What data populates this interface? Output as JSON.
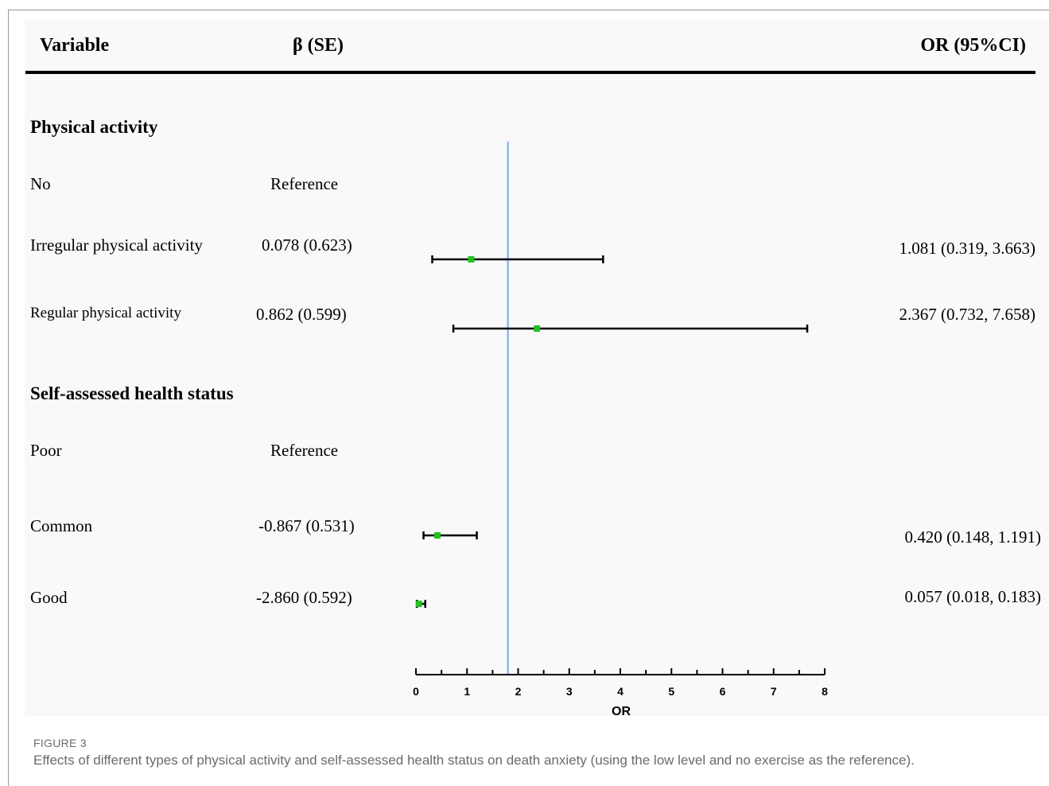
{
  "header": {
    "variable": "Variable",
    "beta": "β (SE)",
    "or": "OR (95%CI)"
  },
  "sections": [
    {
      "title": "Physical activity",
      "rows": [
        {
          "label": "No",
          "beta": "Reference",
          "or_text": ""
        },
        {
          "label": "Irregular physical activity",
          "beta": "0.078 (0.623)",
          "or_text": "1.081 (0.319, 3.663)"
        },
        {
          "label": "Regular physical activity",
          "beta": "0.862 (0.599)",
          "or_text": "2.367 (0.732, 7.658)"
        }
      ]
    },
    {
      "title": "Self-assessed health status",
      "rows": [
        {
          "label": "Poor",
          "beta": "Reference",
          "or_text": ""
        },
        {
          "label": "Common",
          "beta": "-0.867 (0.531)",
          "or_text": "0.420 (0.148, 1.191)"
        },
        {
          "label": "Good",
          "beta": "-2.860 (0.592)",
          "or_text": "0.057 (0.018, 0.183)"
        }
      ]
    }
  ],
  "chart_data": {
    "type": "forest",
    "xlabel": "OR",
    "xlim": [
      0,
      8
    ],
    "xticks": [
      0,
      1,
      2,
      3,
      4,
      5,
      6,
      7,
      8
    ],
    "reference_line": 1.8,
    "colors": {
      "point": "#22c022",
      "ci": "#000000",
      "reference_line": "#8fb8ee"
    },
    "points": [
      {
        "label": "Irregular physical activity",
        "or": 1.081,
        "lower": 0.319,
        "upper": 3.663
      },
      {
        "label": "Regular physical activity",
        "or": 2.367,
        "lower": 0.732,
        "upper": 7.658
      },
      {
        "label": "Common",
        "or": 0.42,
        "lower": 0.148,
        "upper": 1.191
      },
      {
        "label": "Good",
        "or": 0.057,
        "lower": 0.018,
        "upper": 0.183
      }
    ]
  },
  "caption": {
    "label": "FIGURE 3",
    "text": "Effects of different types of physical activity and self-assessed health status on death anxiety (using the low level and no exercise as the reference)."
  }
}
